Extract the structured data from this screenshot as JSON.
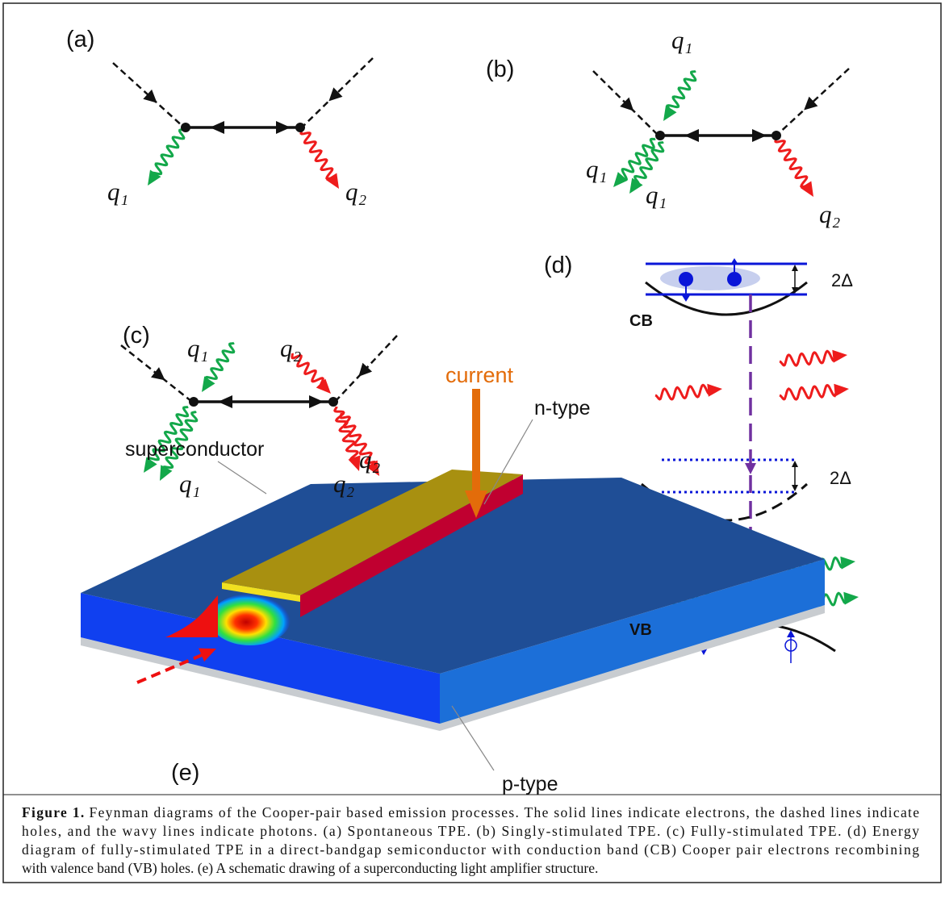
{
  "panel_a": {
    "label": "(a)",
    "q_labels": [
      "q₁",
      "q₂"
    ]
  },
  "panel_b": {
    "label": "(b)",
    "q_labels": [
      "q₁",
      "q₁",
      "q₁",
      "q₂"
    ]
  },
  "panel_c": {
    "label": "(c)",
    "q_labels": [
      "q₁",
      "q₂",
      "q₁",
      "q₂",
      "q₂"
    ]
  },
  "panel_d": {
    "label": "(d)",
    "gap_labels": [
      "2Δ",
      "2Δ"
    ],
    "bands": [
      "CB",
      "VB"
    ]
  },
  "panel_e": {
    "label": "(e)",
    "annotations": [
      "current",
      "n-type",
      "superconductor",
      "p-type"
    ]
  },
  "caption": {
    "label": "Figure 1.",
    "lines": [
      "Feynman diagrams of the Cooper-pair based emission processes. The solid lines indicate electrons, the dashed lines indicate",
      "holes, and the wavy lines indicate photons. (a) Spontaneous TPE. (b) Singly-stimulated TPE. (c) Fully-stimulated TPE. (d) Energy",
      "diagram of fully-stimulated TPE in a direct-bandgap semiconductor with conduction band (CB) Cooper pair electrons recombining",
      "with valence band (VB) holes. (e) A schematic drawing of a superconducting light amplifier structure."
    ]
  }
}
